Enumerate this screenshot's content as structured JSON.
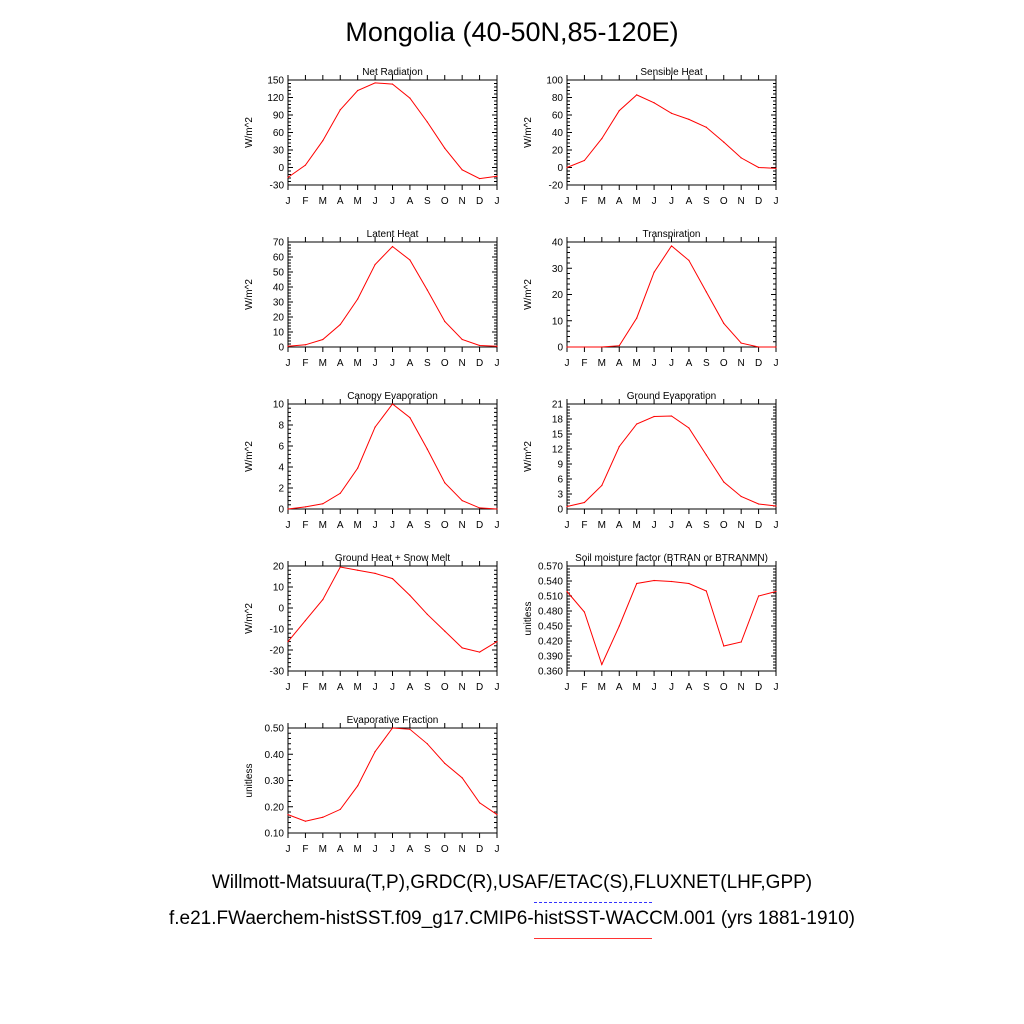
{
  "title": "Mongolia (40-50N,85-120E)",
  "legend": {
    "obs_label": "Willmott-Matsuura(T,P),GRDC(R),USAF/ETAC(S),FLUXNET(LHF,GPP)",
    "obs_color": "#3333ff",
    "model_label": "f.e21.FWaerchem-histSST.f09_g17.CMIP6-histSST-WACCM.001 (yrs 1881-1910)",
    "model_color": "#ff0000"
  },
  "chart_data": [
    {
      "type": "line",
      "title": "Net Radiation",
      "ylabel": "W/m^2",
      "x": [
        "J",
        "F",
        "M",
        "A",
        "M",
        "J",
        "J",
        "A",
        "S",
        "O",
        "N",
        "D",
        "J"
      ],
      "ylim": [
        -30,
        150
      ],
      "yticks": [
        "-30",
        "0",
        "30",
        "60",
        "90",
        "120",
        "150"
      ],
      "series": [
        {
          "values": [
            -17,
            4,
            46,
            99,
            132,
            145,
            143,
            119,
            78,
            33,
            -4,
            -19,
            -15
          ]
        }
      ]
    },
    {
      "type": "line",
      "title": "Sensible Heat",
      "ylabel": "W/m^2",
      "x": [
        "J",
        "F",
        "M",
        "A",
        "M",
        "J",
        "J",
        "A",
        "S",
        "O",
        "N",
        "D",
        "J"
      ],
      "ylim": [
        -20,
        100
      ],
      "yticks": [
        "-20",
        "0",
        "20",
        "40",
        "60",
        "80",
        "100"
      ],
      "series": [
        {
          "values": [
            0,
            8,
            33,
            65,
            83,
            74,
            62,
            55,
            46,
            29,
            11,
            0,
            -1
          ]
        }
      ]
    },
    {
      "type": "line",
      "title": "Latent Heat",
      "ylabel": "W/m^2",
      "x": [
        "J",
        "F",
        "M",
        "A",
        "M",
        "J",
        "J",
        "A",
        "S",
        "O",
        "N",
        "D",
        "J"
      ],
      "ylim": [
        0,
        70
      ],
      "yticks": [
        "0",
        "10",
        "20",
        "30",
        "40",
        "50",
        "60",
        "70"
      ],
      "series": [
        {
          "values": [
            0.5,
            1.5,
            5,
            15,
            32,
            55,
            67,
            58,
            38,
            17,
            5,
            1,
            0.5
          ]
        }
      ]
    },
    {
      "type": "line",
      "title": "Transpiration",
      "ylabel": "W/m^2",
      "x": [
        "J",
        "F",
        "M",
        "A",
        "M",
        "J",
        "J",
        "A",
        "S",
        "O",
        "N",
        "D",
        "J"
      ],
      "ylim": [
        0,
        40
      ],
      "yticks": [
        "0",
        "10",
        "20",
        "30",
        "40"
      ],
      "series": [
        {
          "values": [
            0,
            0,
            0,
            0.5,
            11,
            28.5,
            38.5,
            33,
            21,
            9,
            1.5,
            0,
            0
          ]
        }
      ]
    },
    {
      "type": "line",
      "title": "Canopy Evaporation",
      "ylabel": "W/m^2",
      "x": [
        "J",
        "F",
        "M",
        "A",
        "M",
        "J",
        "J",
        "A",
        "S",
        "O",
        "N",
        "D",
        "J"
      ],
      "ylim": [
        0,
        10
      ],
      "yticks": [
        "0",
        "2",
        "4",
        "6",
        "8",
        "10"
      ],
      "series": [
        {
          "values": [
            0,
            0.2,
            0.5,
            1.5,
            3.9,
            7.8,
            10,
            8.7,
            5.7,
            2.5,
            0.8,
            0.1,
            0
          ]
        }
      ]
    },
    {
      "type": "line",
      "title": "Ground Evaporation",
      "ylabel": "W/m^2",
      "x": [
        "J",
        "F",
        "M",
        "A",
        "M",
        "J",
        "J",
        "A",
        "S",
        "O",
        "N",
        "D",
        "J"
      ],
      "ylim": [
        0,
        21
      ],
      "yticks": [
        "0",
        "3",
        "6",
        "9",
        "12",
        "15",
        "18",
        "21"
      ],
      "series": [
        {
          "values": [
            0.5,
            1.3,
            4.7,
            12.5,
            17,
            18.5,
            18.6,
            16.2,
            10.8,
            5.4,
            2.5,
            1,
            0.6
          ]
        }
      ]
    },
    {
      "type": "line",
      "title": "Ground Heat + Snow Melt",
      "ylabel": "W/m^2",
      "x": [
        "J",
        "F",
        "M",
        "A",
        "M",
        "J",
        "J",
        "A",
        "S",
        "O",
        "N",
        "D",
        "J"
      ],
      "ylim": [
        -30,
        20
      ],
      "yticks": [
        "-30",
        "-20",
        "-10",
        "0",
        "10",
        "20"
      ],
      "series": [
        {
          "values": [
            -16,
            -6,
            4,
            19.5,
            18,
            16.5,
            14,
            6,
            -3,
            -11,
            -19,
            -21,
            -16
          ]
        }
      ]
    },
    {
      "type": "line",
      "title": "Soil moisture factor (BTRAN or BTRANMN)",
      "ylabel": "unitless",
      "x": [
        "J",
        "F",
        "M",
        "A",
        "M",
        "J",
        "J",
        "A",
        "S",
        "O",
        "N",
        "D",
        "J"
      ],
      "ylim": [
        0.36,
        0.57
      ],
      "yticks": [
        "0.360",
        "0.390",
        "0.420",
        "0.450",
        "0.480",
        "0.510",
        "0.540",
        "0.570"
      ],
      "series": [
        {
          "values": [
            0.519,
            0.478,
            0.373,
            0.45,
            0.535,
            0.541,
            0.539,
            0.535,
            0.52,
            0.41,
            0.418,
            0.51,
            0.519
          ]
        }
      ]
    },
    {
      "type": "line",
      "title": "Evaporative Fraction",
      "ylabel": "unitless",
      "x": [
        "J",
        "F",
        "M",
        "A",
        "M",
        "J",
        "J",
        "A",
        "S",
        "O",
        "N",
        "D",
        "J"
      ],
      "ylim": [
        0.1,
        0.5
      ],
      "yticks": [
        "0.10",
        "0.20",
        "0.30",
        "0.40",
        "0.50"
      ],
      "series": [
        {
          "values": [
            0.17,
            0.145,
            0.16,
            0.19,
            0.28,
            0.41,
            0.5,
            0.495,
            0.44,
            0.365,
            0.31,
            0.215,
            0.17
          ]
        }
      ]
    }
  ]
}
